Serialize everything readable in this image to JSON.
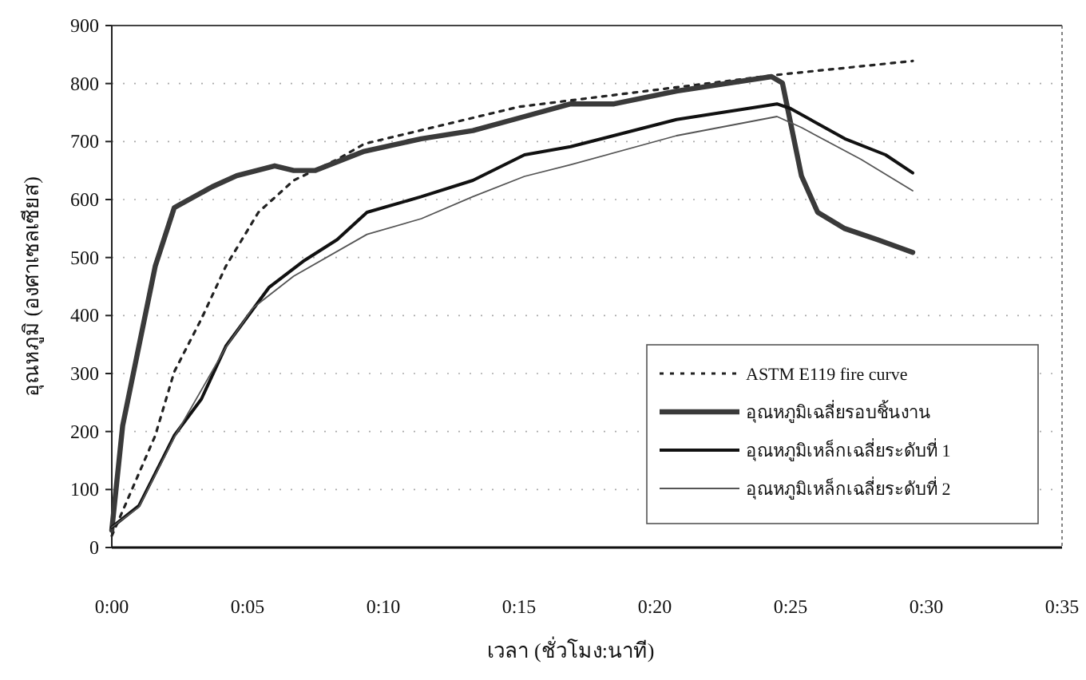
{
  "chart_data": {
    "type": "line",
    "xlabel": "เวลา (ชั่วโมง:นาที)",
    "ylabel": "อุณหภูมิ (องศาเซลเซียส)",
    "xlim": [
      0,
      35
    ],
    "xticks": [
      {
        "value": 0,
        "label": "0:00"
      },
      {
        "value": 5,
        "label": "0:05"
      },
      {
        "value": 10,
        "label": "0:10"
      },
      {
        "value": 15,
        "label": "0:15"
      },
      {
        "value": 20,
        "label": "0:20"
      },
      {
        "value": 25,
        "label": "0:25"
      },
      {
        "value": 30,
        "label": "0:30"
      },
      {
        "value": 35,
        "label": "0:35"
      }
    ],
    "ylim": [
      0,
      900
    ],
    "yticks": [
      0,
      100,
      200,
      300,
      400,
      500,
      600,
      700,
      800,
      900
    ],
    "grid": "y",
    "legend": "bottom right",
    "series": [
      {
        "name": "ASTM E119 fire curve",
        "color": "#222222",
        "line_style": "dotted",
        "x": [
          0,
          0.4,
          1.6,
          2.3,
          3.3,
          4.2,
          5.4,
          6.7,
          8.3,
          9.3,
          15,
          24.5,
          29.5
        ],
        "values": [
          20,
          63,
          193,
          303,
          394,
          485,
          578,
          633,
          669,
          696,
          760,
          815,
          839
        ]
      },
      {
        "name": "อุณหภูมิเฉลี่ยรอบชิ้นงาน",
        "color": "#3a3a3a",
        "line_style": "solid",
        "x": [
          0,
          0.4,
          1.6,
          2.3,
          3.7,
          4.6,
          6,
          6.7,
          7.5,
          9.3,
          11.4,
          13.3,
          15.2,
          16.9,
          18.5,
          20.8,
          24.3,
          24.7,
          25.4,
          26,
          27,
          28.2,
          29.5
        ],
        "values": [
          30,
          210,
          485,
          586,
          622,
          641,
          658,
          650,
          650,
          683,
          705,
          719,
          743,
          765,
          765,
          787,
          812,
          801,
          641,
          578,
          550,
          531,
          509
        ]
      },
      {
        "name": "อุณหภูมิเหล็กเฉลี่ยระดับที่ 1",
        "color": "#111111",
        "line_style": "solid",
        "x": [
          0,
          1,
          2.3,
          3.3,
          4.2,
          5.8,
          7.1,
          8.3,
          9.4,
          11.4,
          13.3,
          15.2,
          16.9,
          20.8,
          24.5,
          25,
          27,
          28.5,
          29.5
        ],
        "values": [
          35,
          72,
          193,
          256,
          347,
          449,
          495,
          531,
          578,
          605,
          633,
          677,
          691,
          738,
          765,
          757,
          705,
          677,
          646
        ]
      },
      {
        "name": "อุณหภูมิเหล็กเฉลี่ยระดับที่ 2",
        "color": "#555555",
        "line_style": "solid",
        "x": [
          0,
          1,
          2.3,
          4.2,
          5.2,
          6.7,
          9.4,
          11.4,
          13.3,
          15.2,
          16.9,
          20.8,
          24.5,
          25.4,
          27.6,
          29.5
        ],
        "values": [
          35,
          70,
          190,
          345,
          413,
          468,
          540,
          567,
          605,
          640,
          660,
          710,
          743,
          724,
          669,
          615
        ]
      }
    ]
  }
}
